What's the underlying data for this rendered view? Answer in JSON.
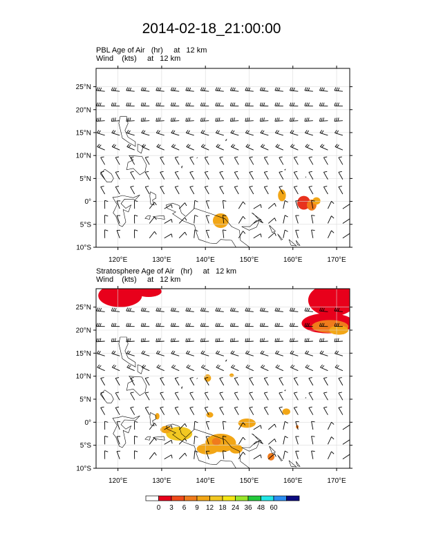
{
  "title": "2014-02-18_21:00:00",
  "panels": [
    {
      "subtitle_line1": "PBL Age of Air   (hr)     at   12 km",
      "subtitle_line2": "Wind    (kts)     at   12 km",
      "field": "PBL Age of Air",
      "units": "hr",
      "level": "12 km",
      "wind_units": "kts",
      "shaded_regions": [
        {
          "lon": 143.5,
          "lat": -4.2,
          "rx": 1.8,
          "ry": 1.6,
          "color": "#f2a616"
        },
        {
          "lon": 157.5,
          "lat": 1.3,
          "rx": 0.9,
          "ry": 1.3,
          "color": "#f2a616"
        },
        {
          "lon": 162.5,
          "lat": -0.3,
          "rx": 1.5,
          "ry": 1.5,
          "color": "#e8321e"
        },
        {
          "lon": 164.3,
          "lat": -0.8,
          "rx": 1.1,
          "ry": 1.2,
          "color": "#f07b1c"
        },
        {
          "lon": 165.4,
          "lat": 0.1,
          "rx": 0.9,
          "ry": 0.8,
          "color": "#f2a616"
        }
      ]
    },
    {
      "subtitle_line1": "Stratosphere Age of Air   (hr)     at   12 km",
      "subtitle_line2": "Wind    (kts)     at   12 km",
      "field": "Stratosphere Age of Air",
      "units": "hr",
      "level": "12 km",
      "wind_units": "kts",
      "shaded_regions": [
        {
          "lon": 120.5,
          "lat": 27.5,
          "rx": 5.0,
          "ry": 2.5,
          "color": "#e8001b"
        },
        {
          "lon": 127.0,
          "lat": 28.4,
          "rx": 3.0,
          "ry": 1.2,
          "color": "#e8001b"
        },
        {
          "lon": 169.0,
          "lat": 26.5,
          "rx": 5.5,
          "ry": 3.5,
          "color": "#e8001b"
        },
        {
          "lon": 168.0,
          "lat": 21.5,
          "rx": 6.0,
          "ry": 2.2,
          "color": "#e8001b"
        },
        {
          "lon": 168.5,
          "lat": 20.8,
          "rx": 4.2,
          "ry": 1.4,
          "color": "#f07b1c"
        },
        {
          "lon": 170.5,
          "lat": 20.0,
          "rx": 2.2,
          "ry": 1.0,
          "color": "#f2a616"
        },
        {
          "lon": 140.5,
          "lat": 9.6,
          "rx": 0.8,
          "ry": 0.8,
          "color": "#f2a616"
        },
        {
          "lon": 146.0,
          "lat": 10.2,
          "rx": 0.5,
          "ry": 0.4,
          "color": "#f2a616"
        },
        {
          "lon": 129.0,
          "lat": 1.3,
          "rx": 0.5,
          "ry": 0.7,
          "color": "#f2a616"
        },
        {
          "lon": 141.0,
          "lat": 1.6,
          "rx": 0.8,
          "ry": 0.6,
          "color": "#f2a616"
        },
        {
          "lon": 158.5,
          "lat": 2.3,
          "rx": 0.9,
          "ry": 0.7,
          "color": "#f2a616"
        },
        {
          "lon": 134.0,
          "lat": -2.5,
          "rx": 3.0,
          "ry": 1.5,
          "color": "#f2c822"
        },
        {
          "lon": 131.0,
          "lat": -1.6,
          "rx": 1.3,
          "ry": 0.8,
          "color": "#f2a616"
        },
        {
          "lon": 143.5,
          "lat": -4.5,
          "rx": 3.5,
          "ry": 2.0,
          "color": "#f2a616"
        },
        {
          "lon": 140.5,
          "lat": -5.8,
          "rx": 2.5,
          "ry": 1.2,
          "color": "#f2a616"
        },
        {
          "lon": 142.5,
          "lat": -4.2,
          "rx": 1.0,
          "ry": 0.8,
          "color": "#f07b1c"
        },
        {
          "lon": 147.0,
          "lat": -5.8,
          "rx": 1.5,
          "ry": 1.0,
          "color": "#f2a616"
        },
        {
          "lon": 149.5,
          "lat": -0.2,
          "rx": 2.0,
          "ry": 1.0,
          "color": "#f2a616"
        },
        {
          "lon": 155.0,
          "lat": -7.5,
          "rx": 0.8,
          "ry": 0.8,
          "color": "#f07b1c"
        },
        {
          "lon": 161.0,
          "lat": -1.0,
          "rx": 0.3,
          "ry": 0.4,
          "color": "#f07b1c"
        }
      ]
    }
  ],
  "map": {
    "lon_range": [
      115,
      173
    ],
    "lat_range": [
      -10,
      29
    ],
    "lon_ticks": [
      120,
      130,
      140,
      150,
      160,
      170
    ],
    "lon_labels": [
      "120°E",
      "130°E",
      "140°E",
      "150°E",
      "160°E",
      "170°E"
    ],
    "lat_ticks": [
      25,
      20,
      15,
      10,
      5,
      0,
      -5,
      -10
    ],
    "lat_labels": [
      "25°N",
      "20°N",
      "15°N",
      "10°N",
      "5°N",
      "0°",
      "5°S",
      "10°S"
    ]
  },
  "colorbar": {
    "labels": [
      "0",
      "3",
      "6",
      "9",
      "12",
      "18",
      "24",
      "36",
      "48",
      "60"
    ],
    "colors": [
      "#ffffff",
      "#e8001b",
      "#f04a1a",
      "#f07b1c",
      "#f2a616",
      "#f2c822",
      "#f5e616",
      "#9be62a",
      "#23c93b",
      "#22e6e6",
      "#2b8ef2",
      "#0a0a80"
    ]
  }
}
